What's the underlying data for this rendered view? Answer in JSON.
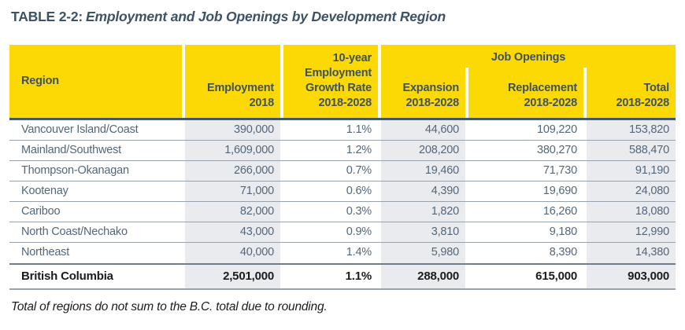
{
  "title": {
    "label": "TABLE 2-2:",
    "text": "Employment and Job Openings by Development Region"
  },
  "table": {
    "header": {
      "region": "Region",
      "employment": [
        "Employment",
        "2018"
      ],
      "growth": [
        "10-year",
        "Employment",
        "Growth Rate",
        "2018-2028"
      ],
      "job_openings_group": "Job Openings",
      "expansion": [
        "Expansion",
        "2018-2028"
      ],
      "replacement": [
        "Replacement",
        "2018-2028"
      ],
      "total": [
        "Total",
        "2018-2028"
      ]
    },
    "rows": [
      {
        "region": "Vancouver Island/Coast",
        "employment": "390,000",
        "growth": "1.1%",
        "expansion": "44,600",
        "replacement": "109,220",
        "total": "153,820"
      },
      {
        "region": "Mainland/Southwest",
        "employment": "1,609,000",
        "growth": "1.2%",
        "expansion": "208,200",
        "replacement": "380,270",
        "total": "588,470"
      },
      {
        "region": "Thompson-Okanagan",
        "employment": "266,000",
        "growth": "0.7%",
        "expansion": "19,460",
        "replacement": "71,730",
        "total": "91,190"
      },
      {
        "region": "Kootenay",
        "employment": "71,000",
        "growth": "0.6%",
        "expansion": "4,390",
        "replacement": "19,690",
        "total": "24,080"
      },
      {
        "region": "Cariboo",
        "employment": "82,000",
        "growth": "0.3%",
        "expansion": "1,820",
        "replacement": "16,260",
        "total": "18,080"
      },
      {
        "region": "North Coast/Nechako",
        "employment": "43,000",
        "growth": "0.9%",
        "expansion": "3,810",
        "replacement": "9,180",
        "total": "12,990"
      },
      {
        "region": "Northeast",
        "employment": "40,000",
        "growth": "1.4%",
        "expansion": "5,980",
        "replacement": "8,390",
        "total": "14,380"
      }
    ],
    "total_row": {
      "region": "British Columbia",
      "employment": "2,501,000",
      "growth": "1.1%",
      "expansion": "288,000",
      "replacement": "615,000",
      "total": "903,000"
    }
  },
  "footnote": "Total of regions do not sum to the B.C. total due to rounding.",
  "colors": {
    "header_yellow": "#FCD805",
    "column_band": "#E9EBEF",
    "heading_text": "#3E5265",
    "data_text": "#54677A",
    "total_text": "#1C1C1A",
    "header_rule": "#44566A",
    "row_rule": "#99A1AA"
  }
}
